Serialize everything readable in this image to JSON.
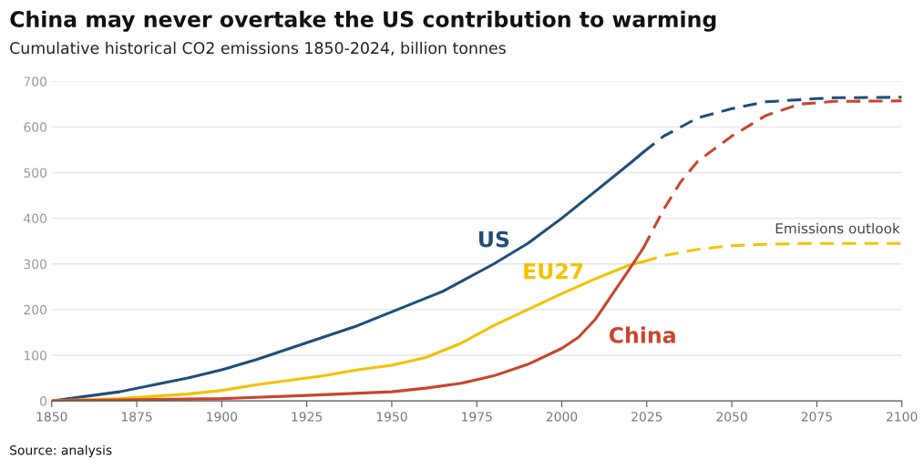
{
  "chart_data": {
    "type": "line",
    "title": "China may never overtake the US contribution to warming",
    "subtitle": "Cumulative historical CO2 emissions 1850-2024, billion tonnes",
    "series": [
      {
        "name": "US",
        "color": "#1f4e79",
        "line_style": "solid",
        "x": [
          1850,
          1860,
          1870,
          1880,
          1890,
          1900,
          1910,
          1920,
          1930,
          1940,
          1950,
          1960,
          1965,
          1970,
          1980,
          1990,
          2000,
          2010,
          2020,
          2024
        ],
        "values": [
          0,
          10,
          20,
          35,
          50,
          68,
          90,
          115,
          140,
          165,
          195,
          225,
          240,
          260,
          300,
          345,
          400,
          460,
          520,
          545
        ]
      },
      {
        "name": "EU27",
        "color": "#f2c200",
        "line_style": "solid",
        "x": [
          1850,
          1870,
          1880,
          1890,
          1900,
          1910,
          1920,
          1930,
          1940,
          1950,
          1960,
          1970,
          1980,
          1990,
          2000,
          2010,
          2020,
          2024
        ],
        "values": [
          0,
          5,
          10,
          15,
          23,
          35,
          45,
          55,
          68,
          78,
          95,
          125,
          165,
          200,
          235,
          268,
          298,
          305
        ]
      },
      {
        "name": "China",
        "color": "#c9452f",
        "line_style": "solid",
        "x": [
          1850,
          1900,
          1925,
          1950,
          1960,
          1970,
          1980,
          1990,
          2000,
          2005,
          2010,
          2015,
          2020,
          2024
        ],
        "values": [
          0,
          5,
          12,
          20,
          28,
          38,
          55,
          80,
          115,
          140,
          180,
          235,
          290,
          335
        ]
      },
      {
        "color": "#1f4e79",
        "line_style": "dashed",
        "x": [
          2024,
          2030,
          2040,
          2050,
          2060,
          2075,
          2080,
          2100
        ],
        "values": [
          545,
          580,
          620,
          640,
          655,
          662,
          664,
          665
        ]
      },
      {
        "color": "#f2c200",
        "line_style": "dashed",
        "x": [
          2024,
          2030,
          2040,
          2050,
          2060,
          2075,
          2100
        ],
        "values": [
          305,
          318,
          332,
          340,
          343,
          345,
          345
        ]
      },
      {
        "color": "#c9452f",
        "line_style": "dashed",
        "x": [
          2024,
          2030,
          2035,
          2040,
          2050,
          2060,
          2070,
          2080,
          2100
        ],
        "values": [
          335,
          420,
          480,
          525,
          580,
          625,
          650,
          656,
          657
        ]
      }
    ],
    "annotations": [
      "Emissions outlook",
      "Source: analysis"
    ],
    "xlim": [
      1850,
      2100
    ],
    "xticks": [
      1850,
      1875,
      1900,
      1925,
      1950,
      1975,
      2000,
      2025,
      2050,
      2075,
      2100
    ],
    "ylim": [
      0,
      700
    ],
    "yticks": [
      0,
      100,
      200,
      300,
      400,
      500,
      600,
      700
    ],
    "grid": "y",
    "legend": false
  }
}
